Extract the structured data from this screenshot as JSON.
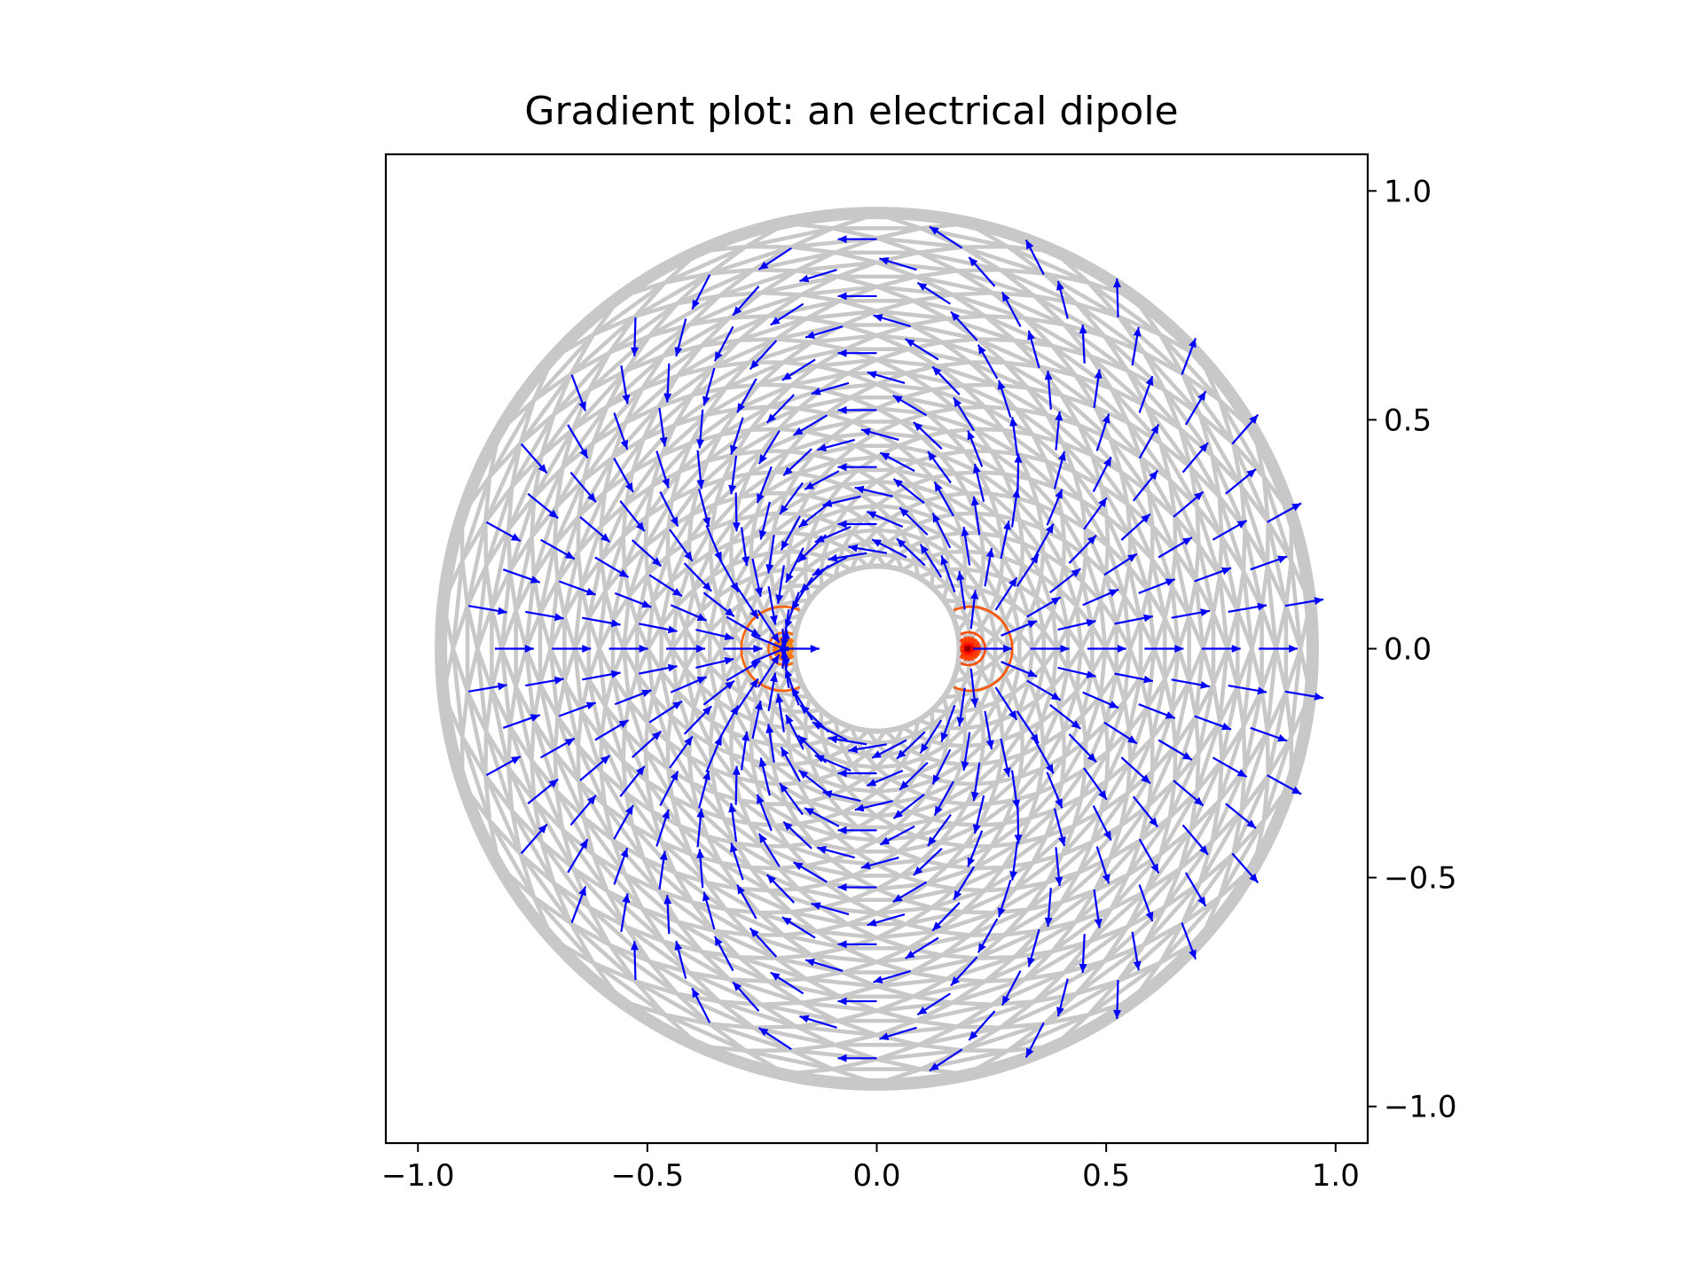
{
  "chart_data": {
    "type": "tricontour-quiver",
    "title": "Gradient plot: an electrical dipole",
    "xlabel": "",
    "ylabel": "",
    "xlim": [
      -1.07,
      1.07
    ],
    "ylim": [
      -1.08,
      1.08
    ],
    "xticks": [
      -1.0,
      -0.5,
      0.0,
      0.5,
      1.0
    ],
    "yticks": [
      1.0,
      0.5,
      0.0,
      -0.5,
      -1.0
    ],
    "xtick_labels": [
      "−1.0",
      "−0.5",
      "0.0",
      "0.5",
      "1.0"
    ],
    "ytick_labels": [
      "1.0",
      "0.5",
      "0.0",
      "−0.5",
      "−1.0"
    ],
    "y_axis_side": "right",
    "grid": false,
    "mesh": {
      "inner_radius": 0.18,
      "outer_radius": 0.95,
      "n_radii": 30,
      "n_angles": 30,
      "color": "#c8c8c8"
    },
    "dipole": {
      "charge_offset": 0.2,
      "charge_angle": 0.0
    },
    "contour_levels": [
      0.0,
      0.1,
      0.2,
      0.3,
      0.4,
      0.5,
      0.6,
      0.7,
      0.8,
      0.9,
      1.0
    ],
    "colormap": "hot",
    "quiver_color": "#0000ff"
  }
}
